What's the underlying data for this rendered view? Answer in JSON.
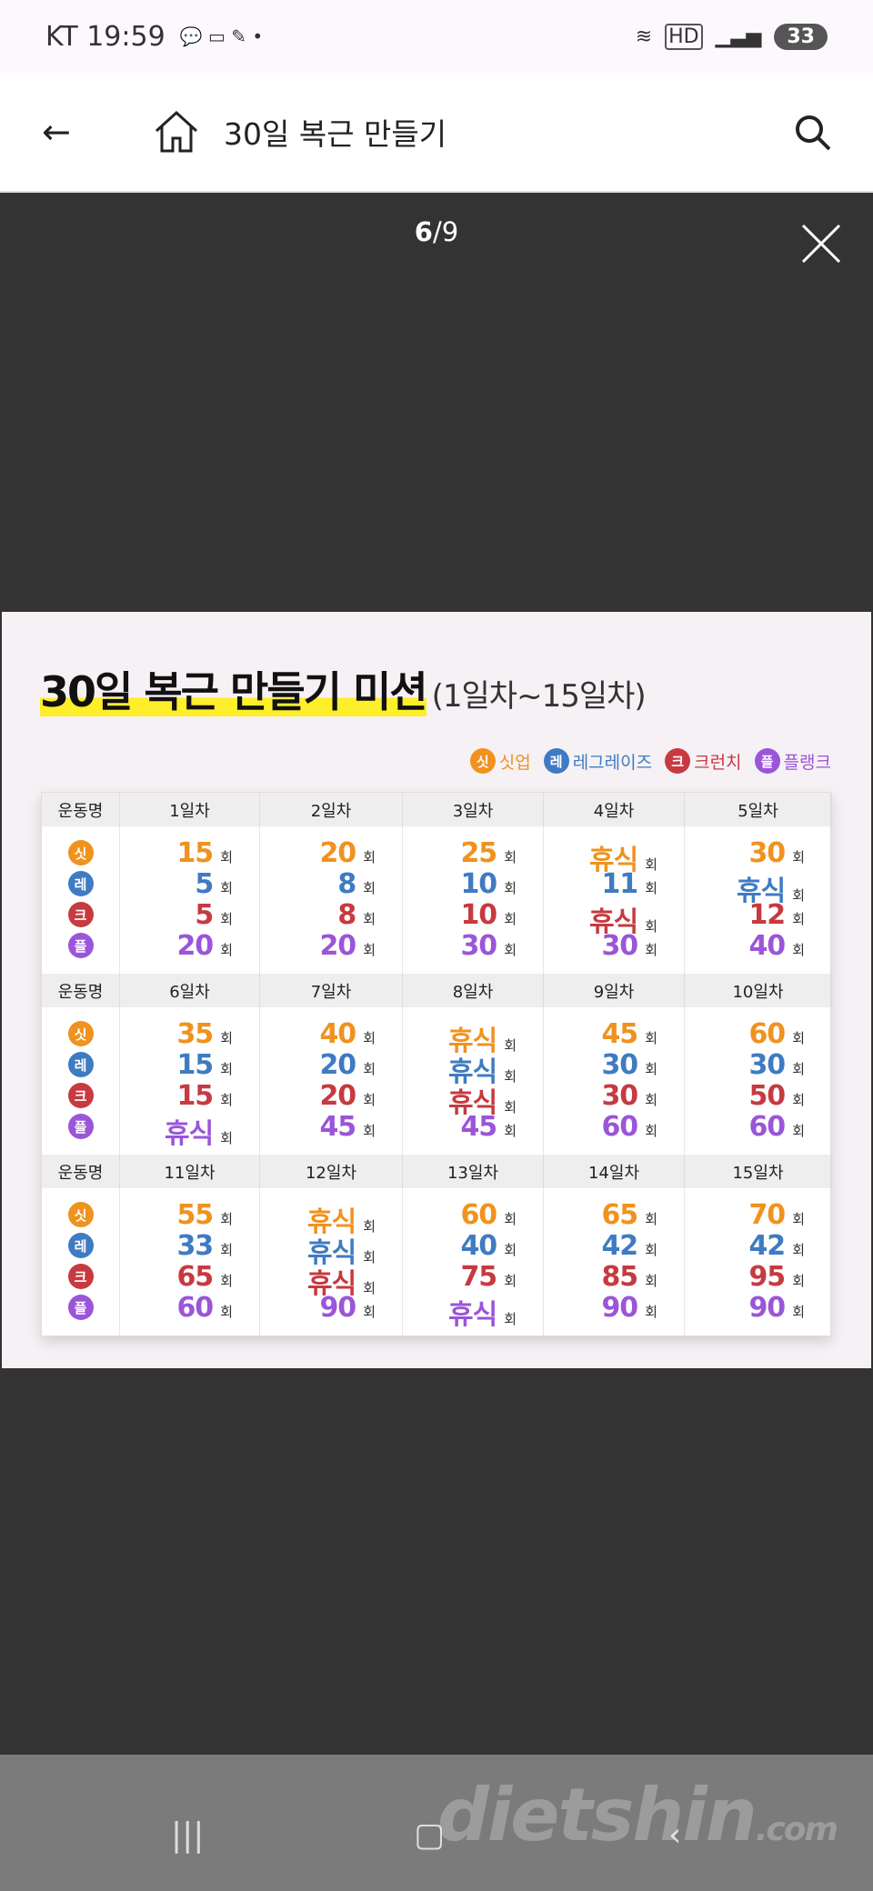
{
  "status": {
    "carrier": "KT",
    "time": "19:59",
    "battery": "33",
    "hd": "HD"
  },
  "appbar": {
    "title": "30일 복근 만들기"
  },
  "viewer": {
    "current": "6",
    "total": "/9"
  },
  "poster": {
    "title": "30일 복근 만들기 미션",
    "subtitle": "(1일차~15일차)",
    "colors": {
      "싯업": "#f0921e",
      "레그레이즈": "#3f7bc2",
      "크런치": "#c63a40",
      "플랭크": "#9a55d8"
    },
    "legend": [
      {
        "icon": "싯",
        "label": "싯업",
        "color": "#f0921e"
      },
      {
        "icon": "레",
        "label": "레그레이즈",
        "color": "#3f7bc2"
      },
      {
        "icon": "크",
        "label": "크런치",
        "color": "#c63a40"
      },
      {
        "icon": "플",
        "label": "플랭크",
        "color": "#9a55d8"
      }
    ],
    "row_header": "운동명",
    "unit": "회",
    "groups": [
      {
        "days": [
          "1일차",
          "2일차",
          "3일차",
          "4일차",
          "5일차"
        ],
        "values": [
          [
            "15",
            "5",
            "5",
            "20"
          ],
          [
            "20",
            "8",
            "8",
            "20"
          ],
          [
            "25",
            "10",
            "10",
            "30"
          ],
          [
            "휴식",
            "11",
            "휴식",
            "30"
          ],
          [
            "30",
            "휴식",
            "12",
            "40"
          ]
        ]
      },
      {
        "days": [
          "6일차",
          "7일차",
          "8일차",
          "9일차",
          "10일차"
        ],
        "values": [
          [
            "35",
            "15",
            "15",
            "휴식"
          ],
          [
            "40",
            "20",
            "20",
            "45"
          ],
          [
            "휴식",
            "휴식",
            "휴식",
            "45"
          ],
          [
            "45",
            "30",
            "30",
            "60"
          ],
          [
            "60",
            "30",
            "50",
            "60"
          ]
        ]
      },
      {
        "days": [
          "11일차",
          "12일차",
          "13일차",
          "14일차",
          "15일차"
        ],
        "values": [
          [
            "55",
            "33",
            "65",
            "60"
          ],
          [
            "휴식",
            "휴식",
            "휴식",
            "90"
          ],
          [
            "60",
            "40",
            "75",
            "휴식"
          ],
          [
            "65",
            "42",
            "85",
            "90"
          ],
          [
            "70",
            "42",
            "95",
            "90"
          ]
        ]
      }
    ]
  },
  "watermark": "dietshin",
  "watermark_suffix": ".com"
}
